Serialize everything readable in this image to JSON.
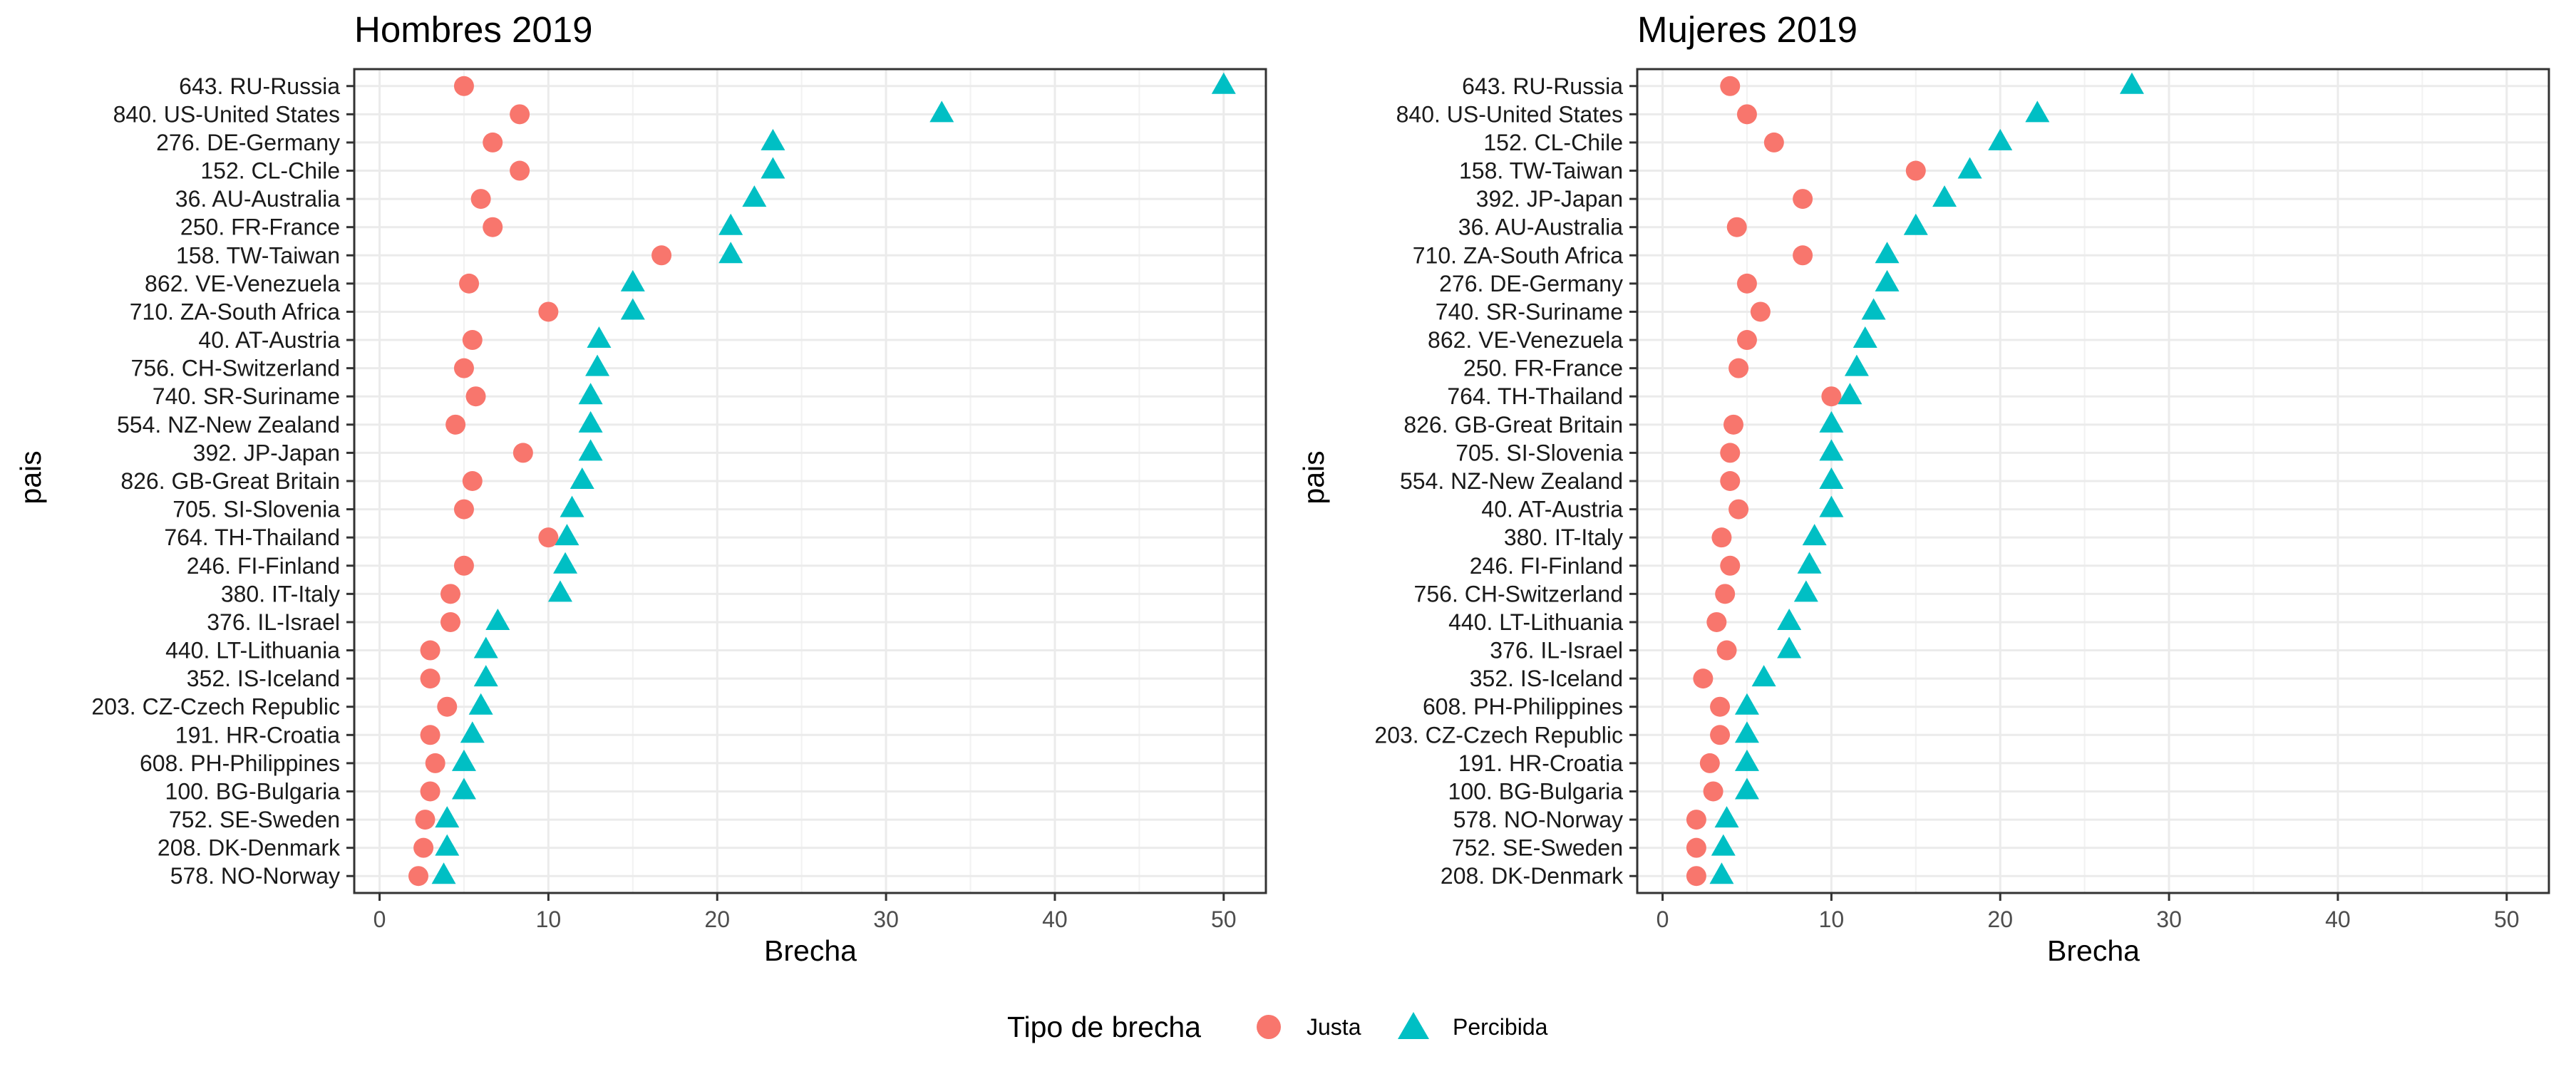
{
  "legend": {
    "title": "Tipo de brecha",
    "position": "bottom",
    "items": [
      {
        "label": "Justa",
        "shape": "circle",
        "color": "#F8766D"
      },
      {
        "label": "Percibida",
        "shape": "triangle",
        "color": "#00BFC4"
      }
    ]
  },
  "highlight": {
    "category": "152. CL-Chile",
    "color": "#FF0000"
  },
  "chart_data": [
    {
      "type": "scatter",
      "title": "Hombres 2019",
      "xlabel": "Brecha",
      "ylabel": "pais",
      "xlim": [
        -1.5,
        52.5
      ],
      "xticks": [
        0,
        10,
        20,
        30,
        40,
        50
      ],
      "grid": true,
      "categories": [
        "643. RU-Russia",
        "840. US-United States",
        "276. DE-Germany",
        "152. CL-Chile",
        "36. AU-Australia",
        "250. FR-France",
        "158. TW-Taiwan",
        "862. VE-Venezuela",
        "710. ZA-South Africa",
        "40. AT-Austria",
        "756. CH-Switzerland",
        "740. SR-Suriname",
        "554. NZ-New Zealand",
        "392. JP-Japan",
        "826. GB-Great Britain",
        "705. SI-Slovenia",
        "764. TH-Thailand",
        "246. FI-Finland",
        "380. IT-Italy",
        "376. IL-Israel",
        "440. LT-Lithuania",
        "352. IS-Iceland",
        "203. CZ-Czech Republic",
        "191. HR-Croatia",
        "608. PH-Philippines",
        "100. BG-Bulgaria",
        "752. SE-Sweden",
        "208. DK-Denmark",
        "578. NO-Norway"
      ],
      "series": [
        {
          "name": "Justa",
          "values": [
            5.0,
            8.3,
            6.7,
            8.3,
            6.0,
            6.7,
            16.7,
            5.3,
            10.0,
            5.5,
            5.0,
            5.7,
            4.5,
            8.5,
            5.5,
            5.0,
            10.0,
            5.0,
            4.2,
            4.2,
            3.0,
            3.0,
            4.0,
            3.0,
            3.3,
            3.0,
            2.7,
            2.6,
            2.3
          ]
        },
        {
          "name": "Percibida",
          "values": [
            50.0,
            33.3,
            23.3,
            23.3,
            22.2,
            20.8,
            20.8,
            15.0,
            15.0,
            13.0,
            12.9,
            12.5,
            12.5,
            12.5,
            12.0,
            11.4,
            11.1,
            11.0,
            10.7,
            7.0,
            6.3,
            6.3,
            6.0,
            5.5,
            5.0,
            5.0,
            4.0,
            4.0,
            3.8
          ]
        }
      ]
    },
    {
      "type": "scatter",
      "title": "Mujeres 2019",
      "xlabel": "Brecha",
      "ylabel": "pais",
      "xlim": [
        -1.5,
        52.5
      ],
      "xticks": [
        0,
        10,
        20,
        30,
        40,
        50
      ],
      "grid": true,
      "categories": [
        "643. RU-Russia",
        "840. US-United States",
        "152. CL-Chile",
        "158. TW-Taiwan",
        "392. JP-Japan",
        "36. AU-Australia",
        "710. ZA-South Africa",
        "276. DE-Germany",
        "740. SR-Suriname",
        "862. VE-Venezuela",
        "250. FR-France",
        "764. TH-Thailand",
        "826. GB-Great Britain",
        "705. SI-Slovenia",
        "554. NZ-New Zealand",
        "40. AT-Austria",
        "380. IT-Italy",
        "246. FI-Finland",
        "756. CH-Switzerland",
        "440. LT-Lithuania",
        "376. IL-Israel",
        "352. IS-Iceland",
        "608. PH-Philippines",
        "203. CZ-Czech Republic",
        "191. HR-Croatia",
        "100. BG-Bulgaria",
        "578. NO-Norway",
        "752. SE-Sweden",
        "208. DK-Denmark"
      ],
      "series": [
        {
          "name": "Justa",
          "values": [
            4.0,
            5.0,
            6.6,
            15.0,
            8.3,
            4.4,
            8.3,
            5.0,
            5.8,
            5.0,
            4.5,
            10.0,
            4.2,
            4.0,
            4.0,
            4.5,
            3.5,
            4.0,
            3.7,
            3.2,
            3.8,
            2.4,
            3.4,
            3.4,
            2.8,
            3.0,
            2.0,
            2.0,
            2.0
          ]
        },
        {
          "name": "Percibida",
          "values": [
            27.8,
            22.2,
            20.0,
            18.2,
            16.7,
            15.0,
            13.3,
            13.3,
            12.5,
            12.0,
            11.5,
            11.1,
            10.0,
            10.0,
            10.0,
            10.0,
            9.0,
            8.7,
            8.5,
            7.5,
            7.5,
            6.0,
            5.0,
            5.0,
            5.0,
            5.0,
            3.8,
            3.6,
            3.5
          ]
        }
      ]
    }
  ]
}
